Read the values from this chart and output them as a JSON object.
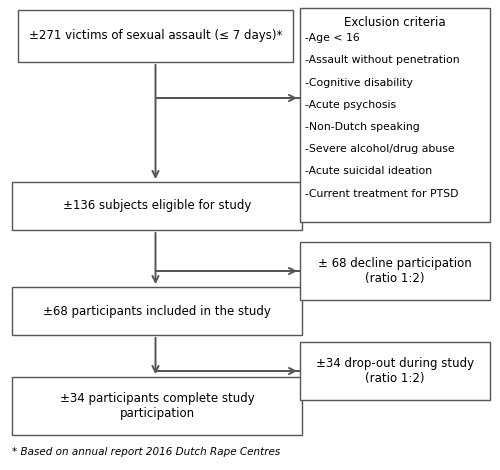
{
  "bg_color": "#ffffff",
  "box_color": "#ffffff",
  "box_edge_color": "#555555",
  "arrow_color": "#555555",
  "text_color": "#000000",
  "box1_text": "±271 victims of sexual assault (≤ 7 days)*",
  "box2_text": "±136 subjects eligible for study",
  "box3_text": "±68 participants included in the study",
  "box4_text": "±34 participants complete study\nparticipation",
  "excl_title": "Exclusion criteria",
  "excl_items": [
    "-Age < 16",
    "-Assault without penetration",
    "-Cognitive disability",
    "-Acute psychosis",
    "-Non-Dutch speaking",
    "-Severe alcohol/drug abuse",
    "-Acute suicidal ideation",
    "-Current treatment for PTSD"
  ],
  "side1_text": "± 68 decline participation\n(ratio 1:2)",
  "side2_text": "±34 drop-out during study\n(ratio 1:2)",
  "footnote": "* Based on annual report 2016 Dutch Rape Centres",
  "font_size_main": 8.5,
  "font_size_excl_title": 8.5,
  "font_size_excl_item": 7.8,
  "font_size_footnote": 7.5,
  "lw": 1.0
}
